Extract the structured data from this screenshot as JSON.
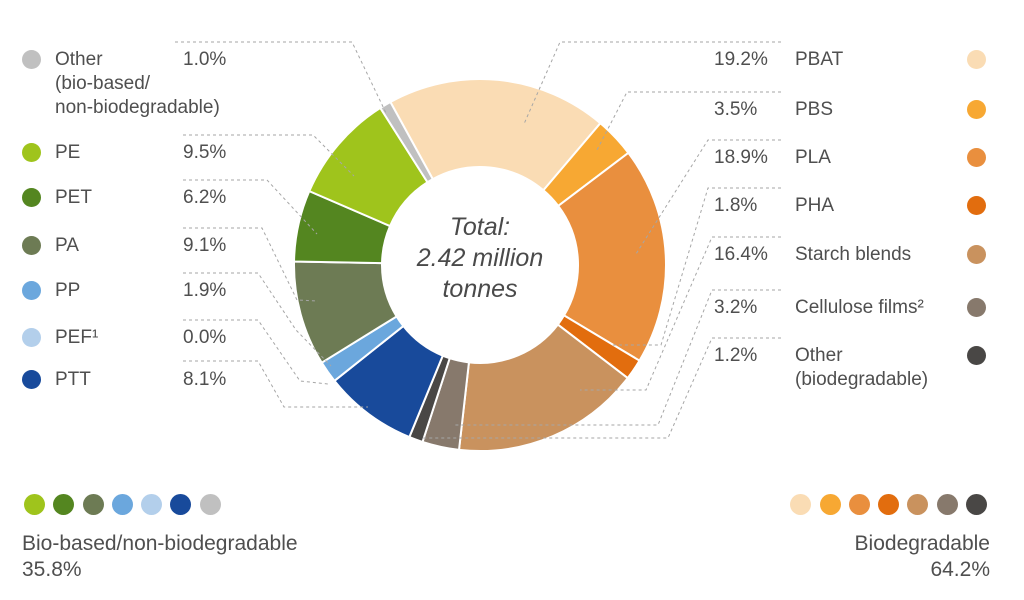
{
  "chart_data": {
    "type": "donut",
    "center_label": "Total:\n2.42 million\ntonnes",
    "rotation_deg": -28.8,
    "legend_position": "both-sides",
    "segments": [
      {
        "id": "pbat",
        "label": "PBAT",
        "pct": 19.2,
        "pct_label": "19.2%",
        "color": "#fadcb4",
        "side": "right"
      },
      {
        "id": "pbs",
        "label": "PBS",
        "pct": 3.5,
        "pct_label": "3.5%",
        "color": "#f7a833",
        "side": "right"
      },
      {
        "id": "pla",
        "label": "PLA",
        "pct": 18.9,
        "pct_label": "18.9%",
        "color": "#e98f3e",
        "side": "right"
      },
      {
        "id": "pha",
        "label": "PHA",
        "pct": 1.8,
        "pct_label": "1.8%",
        "color": "#e26d0e",
        "side": "right"
      },
      {
        "id": "starch",
        "label": "Starch blends",
        "pct": 16.4,
        "pct_label": "16.4%",
        "color": "#c9925e",
        "side": "right"
      },
      {
        "id": "cellulose",
        "label": "Cellulose films²",
        "pct": 3.2,
        "pct_label": "3.2%",
        "color": "#87796c",
        "side": "right"
      },
      {
        "id": "other_biodeg",
        "label": "Other\n(biodegradable)",
        "pct": 1.2,
        "pct_label": "1.2%",
        "color": "#494745",
        "side": "right"
      },
      {
        "id": "ptt",
        "label": "PTT",
        "pct": 8.1,
        "pct_label": "8.1%",
        "color": "#184a9b",
        "side": "left"
      },
      {
        "id": "pef",
        "label": "PEF¹",
        "pct": 0.0,
        "pct_label": "0.0%",
        "color": "#b3cfeb",
        "side": "left"
      },
      {
        "id": "pp",
        "label": "PP",
        "pct": 1.9,
        "pct_label": "1.9%",
        "color": "#6ba7dd",
        "side": "left"
      },
      {
        "id": "pa",
        "label": "PA",
        "pct": 9.1,
        "pct_label": "9.1%",
        "color": "#6d7b54",
        "side": "left"
      },
      {
        "id": "pet",
        "label": "PET",
        "pct": 6.2,
        "pct_label": "6.2%",
        "color": "#548620",
        "side": "left"
      },
      {
        "id": "pe",
        "label": "PE",
        "pct": 9.5,
        "pct_label": "9.5%",
        "color": "#9fc41c",
        "side": "left"
      },
      {
        "id": "other_bio",
        "label": "Other\n(bio-based/\nnon-biodegradable)",
        "pct": 1.0,
        "pct_label": "1.0%",
        "color": "#c0c0c0",
        "side": "left"
      }
    ],
    "groups": [
      {
        "id": "bio_based",
        "label": "Bio-based/non-biodegradable",
        "pct_label": "35.8%",
        "colors": [
          "#9fc41c",
          "#548620",
          "#6d7b54",
          "#6ba7dd",
          "#b3cfeb",
          "#184a9b",
          "#c0c0c0"
        ]
      },
      {
        "id": "biodegradable",
        "label": "Biodegradable",
        "pct_label": "64.2%",
        "colors": [
          "#fadcb4",
          "#f7a833",
          "#e98f3e",
          "#e26d0e",
          "#c9925e",
          "#87796c",
          "#494745"
        ]
      }
    ]
  }
}
